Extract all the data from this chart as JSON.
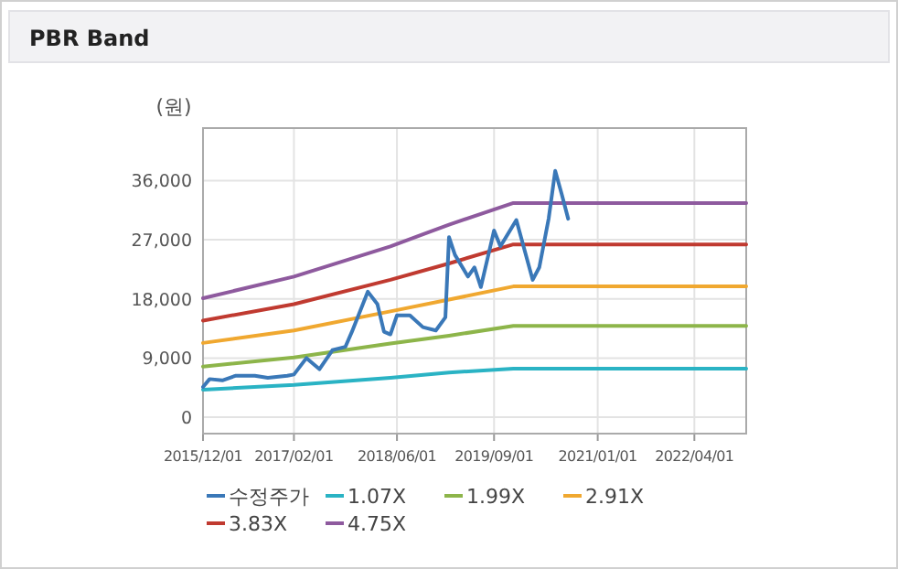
{
  "chart_data": {
    "type": "line",
    "title": "PBR Band",
    "ylabel": "(원)",
    "xlim": [
      "2015-12-01",
      "2022-12-01"
    ],
    "ylim": [
      -2500,
      44000
    ],
    "xticks": [
      {
        "value": "2015-12-01",
        "label": "2015/12/01"
      },
      {
        "value": "2017-02-01",
        "label": "2017/02/01"
      },
      {
        "value": "2018-06-01",
        "label": "2018/06/01"
      },
      {
        "value": "2019-09-01",
        "label": "2019/09/01"
      },
      {
        "value": "2021-01-01",
        "label": "2021/01/01"
      },
      {
        "value": "2022-04-01",
        "label": "2022/04/01"
      }
    ],
    "yticks": [
      0,
      {
        "value": 9000,
        "label": "9,000"
      },
      {
        "value": 18000,
        "label": "18,000"
      },
      {
        "value": 27000,
        "label": "27,000"
      },
      {
        "value": 36000,
        "label": "36,000"
      }
    ],
    "grid": true,
    "legend": "bottom",
    "marker": "none",
    "line_style": "solid",
    "series": [
      {
        "name": "수정주가",
        "color": "#3a78b8",
        "x": [
          "2015-12-01",
          "2016-01-01",
          "2016-03-01",
          "2016-05-01",
          "2016-08-01",
          "2016-10-01",
          "2017-01-01",
          "2017-02-01",
          "2017-04-01",
          "2017-06-01",
          "2017-08-01",
          "2017-10-01",
          "2017-11-01",
          "2018-01-15",
          "2018-03-01",
          "2018-04-01",
          "2018-05-01",
          "2018-06-01",
          "2018-08-01",
          "2018-10-01",
          "2018-12-01",
          "2019-01-15",
          "2019-02-01",
          "2019-03-01",
          "2019-05-01",
          "2019-06-01",
          "2019-07-01",
          "2019-09-01",
          "2019-10-01",
          "2019-12-15",
          "2020-03-01",
          "2020-04-01",
          "2020-05-15",
          "2020-06-15",
          "2020-07-15",
          "2020-08-15"
        ],
        "values": [
          4600,
          5800,
          5600,
          6300,
          6300,
          6000,
          6300,
          6500,
          9000,
          7300,
          10200,
          10700,
          13000,
          19100,
          17200,
          13000,
          12600,
          15500,
          15500,
          13700,
          13200,
          15200,
          27400,
          24700,
          21400,
          22800,
          19800,
          28400,
          26000,
          30000,
          20900,
          22800,
          30200,
          37500,
          34000,
          30200
        ]
      },
      {
        "name": "1.07X",
        "color": "#2ab3c4",
        "x": [
          "2015-12-01",
          "2017-02-01",
          "2018-05-01",
          "2019-02-01",
          "2019-12-01",
          "2022-12-01"
        ],
        "values": [
          4200,
          4900,
          6000,
          6800,
          7400,
          7400
        ]
      },
      {
        "name": "1.99X",
        "color": "#8db54a",
        "x": [
          "2015-12-01",
          "2017-02-01",
          "2018-05-01",
          "2019-02-01",
          "2019-12-01",
          "2022-12-01"
        ],
        "values": [
          7700,
          9100,
          11200,
          12400,
          13900,
          13900
        ]
      },
      {
        "name": "2.91X",
        "color": "#f0a830",
        "x": [
          "2015-12-01",
          "2017-02-01",
          "2018-05-01",
          "2019-02-01",
          "2019-12-01",
          "2022-12-01"
        ],
        "values": [
          11300,
          13200,
          16100,
          17900,
          19900,
          19900
        ]
      },
      {
        "name": "3.83X",
        "color": "#c03a30",
        "x": [
          "2015-12-01",
          "2017-02-01",
          "2018-05-01",
          "2019-02-01",
          "2019-12-01",
          "2022-12-01"
        ],
        "values": [
          14700,
          17200,
          20900,
          23400,
          26300,
          26300
        ]
      },
      {
        "name": "4.75X",
        "color": "#8e5a9e",
        "x": [
          "2015-12-01",
          "2017-02-01",
          "2018-05-01",
          "2019-02-01",
          "2019-12-01",
          "2022-12-01"
        ],
        "values": [
          18100,
          21400,
          26000,
          29300,
          32600,
          32600
        ]
      }
    ]
  }
}
